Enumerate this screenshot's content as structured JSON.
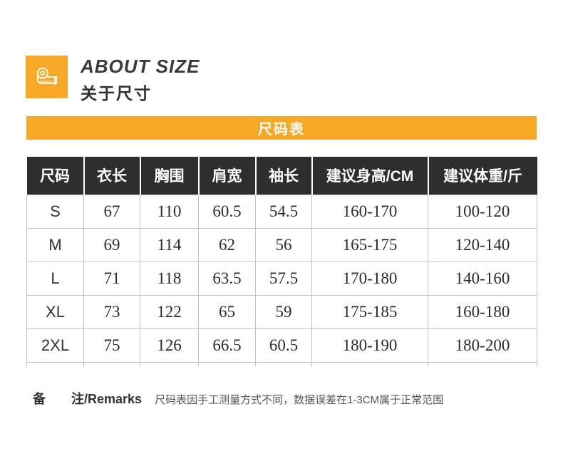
{
  "colors": {
    "accent_orange": "#F7A824",
    "table_header_bg": "#2E2E2E",
    "table_border": "#C2C2C2"
  },
  "header": {
    "icon": "measuring-tape-icon",
    "title_en": "ABOUT SIZE",
    "title_zh": "关于尺寸"
  },
  "banner": {
    "label": "尺码表"
  },
  "size_table": {
    "columns": [
      "尺码",
      "衣长",
      "胸围",
      "肩宽",
      "袖长",
      "建议身高/CM",
      "建议体重/斤"
    ],
    "rows": [
      [
        "S",
        "67",
        "110",
        "60.5",
        "54.5",
        "160-170",
        "100-120"
      ],
      [
        "M",
        "69",
        "114",
        "62",
        "56",
        "165-175",
        "120-140"
      ],
      [
        "L",
        "71",
        "118",
        "63.5",
        "57.5",
        "170-180",
        "140-160"
      ],
      [
        "XL",
        "73",
        "122",
        "65",
        "59",
        "175-185",
        "160-180"
      ],
      [
        "2XL",
        "75",
        "126",
        "66.5",
        "60.5",
        "180-190",
        "180-200"
      ]
    ]
  },
  "remarks": {
    "label_first": "备",
    "label_second": "注/Remarks",
    "text": "尺码表因手工测量方式不同，数据误差在1-3CM属于正常范围"
  }
}
